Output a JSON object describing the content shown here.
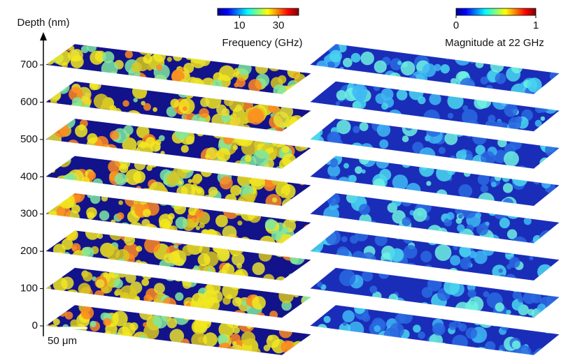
{
  "chart_data": {
    "type": "slice-stack",
    "ylabel": "Depth (nm)",
    "ylim": [
      0,
      700
    ],
    "yticks": [
      0,
      100,
      200,
      300,
      400,
      500,
      600,
      700
    ],
    "scale_bar": "50 μm",
    "colorbars": [
      {
        "label": "Frequency (GHz)",
        "scale": "log",
        "clim": [
          5.4,
          53
        ],
        "ticks": [
          10,
          30
        ]
      },
      {
        "label": "Magnitude at 22 GHz",
        "scale": "linear",
        "clim": [
          0,
          1
        ],
        "ticks": [
          0,
          1
        ]
      }
    ]
  }
}
